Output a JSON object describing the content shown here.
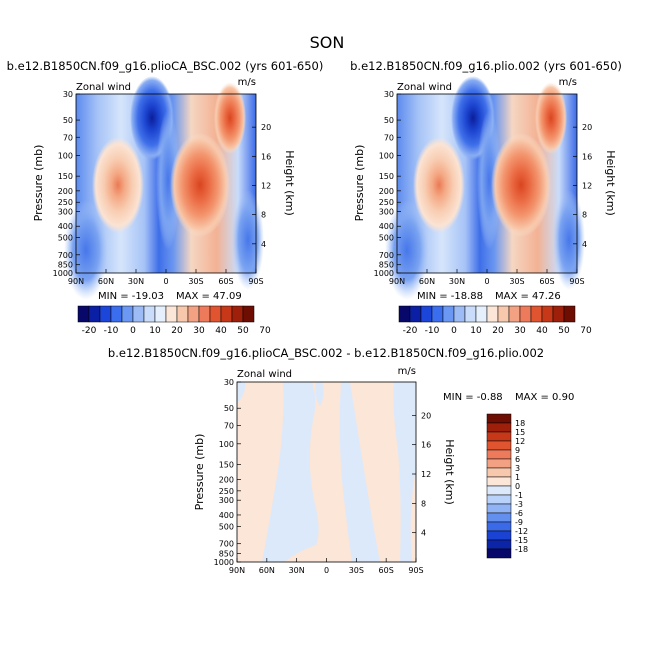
{
  "figure": {
    "season": "SON"
  },
  "chart_data": [
    {
      "type": "heatmap",
      "title": "b.e12.B1850CN.f09_g16.plioCA_BSC.002 (yrs 601-650)",
      "left_label": "Zonal wind",
      "right_label": "m/s",
      "xlabel": "",
      "ylabel": "Pressure (mb)",
      "y2label": "Height (km)",
      "x_ticks": [
        "90N",
        "60N",
        "30N",
        "0",
        "30S",
        "60S",
        "90S"
      ],
      "y_ticks": [
        "30",
        "50",
        "70",
        "100",
        "150",
        "200",
        "250",
        "300",
        "400",
        "500",
        "700",
        "850",
        "1000"
      ],
      "y2_ticks": [
        "20",
        "16",
        "12",
        "8",
        "4"
      ],
      "min_text": "MIN = -19.03",
      "max_text": "MAX =  47.09",
      "min": -19.03,
      "max": 47.09,
      "colorbar": {
        "orientation": "horizontal",
        "labels": [
          "-20",
          "-10",
          "0",
          "10",
          "20",
          "30",
          "40",
          "50",
          "70"
        ]
      }
    },
    {
      "type": "heatmap",
      "title": "b.e12.B1850CN.f09_g16.plio.002 (yrs 601-650)",
      "left_label": "Zonal wind",
      "right_label": "m/s",
      "xlabel": "",
      "ylabel": "Pressure (mb)",
      "y2label": "Height (km)",
      "x_ticks": [
        "90N",
        "60N",
        "30N",
        "0",
        "30S",
        "60S",
        "90S"
      ],
      "y_ticks": [
        "30",
        "50",
        "70",
        "100",
        "150",
        "200",
        "250",
        "300",
        "400",
        "500",
        "700",
        "850",
        "1000"
      ],
      "y2_ticks": [
        "20",
        "16",
        "12",
        "8",
        "4"
      ],
      "min_text": "MIN = -18.88",
      "max_text": "MAX =  47.26",
      "min": -18.88,
      "max": 47.26,
      "colorbar": {
        "orientation": "horizontal",
        "labels": [
          "-20",
          "-10",
          "0",
          "10",
          "20",
          "30",
          "40",
          "50",
          "70"
        ]
      }
    },
    {
      "type": "heatmap",
      "title": "b.e12.B1850CN.f09_g16.plioCA_BSC.002 - b.e12.B1850CN.f09_g16.plio.002",
      "left_label": "Zonal wind",
      "right_label": "m/s",
      "xlabel": "",
      "ylabel": "Pressure (mb)",
      "y2label": "Height (km)",
      "x_ticks": [
        "90N",
        "60N",
        "30N",
        "0",
        "30S",
        "60S",
        "90S"
      ],
      "y_ticks": [
        "30",
        "50",
        "70",
        "100",
        "150",
        "200",
        "250",
        "300",
        "400",
        "500",
        "700",
        "850",
        "1000"
      ],
      "y2_ticks": [
        "20",
        "16",
        "12",
        "8",
        "4"
      ],
      "min_text": "MIN =  -0.88",
      "max_text": "MAX =   0.90",
      "min": -0.88,
      "max": 0.9,
      "colorbar": {
        "orientation": "vertical",
        "labels": [
          "18",
          "15",
          "12",
          "9",
          "6",
          "3",
          "1",
          "0",
          "-1",
          "-3",
          "-6",
          "-9",
          "-12",
          "-15",
          "-18"
        ]
      }
    }
  ],
  "colors": {
    "cb_horizontal": [
      "#08086b",
      "#0a1fa3",
      "#1c46d9",
      "#3a6eef",
      "#6b98f2",
      "#9dbcf6",
      "#c9dcfa",
      "#e6f0fd",
      "#fbe6d7",
      "#f7c8ac",
      "#f2a283",
      "#ec7a5b",
      "#e0542f",
      "#c73818",
      "#9e1f0a",
      "#6e0e02"
    ],
    "cb_vertical": [
      "#6e0e02",
      "#9e1f0a",
      "#c73818",
      "#e0542f",
      "#ec7a5b",
      "#f2a283",
      "#f7c8ac",
      "#fbe6d7",
      "#dce9fb",
      "#b8d2f9",
      "#8fb3f4",
      "#6390ef",
      "#3a6ae8",
      "#1a43d4",
      "#0c24a8",
      "#08086b"
    ]
  }
}
